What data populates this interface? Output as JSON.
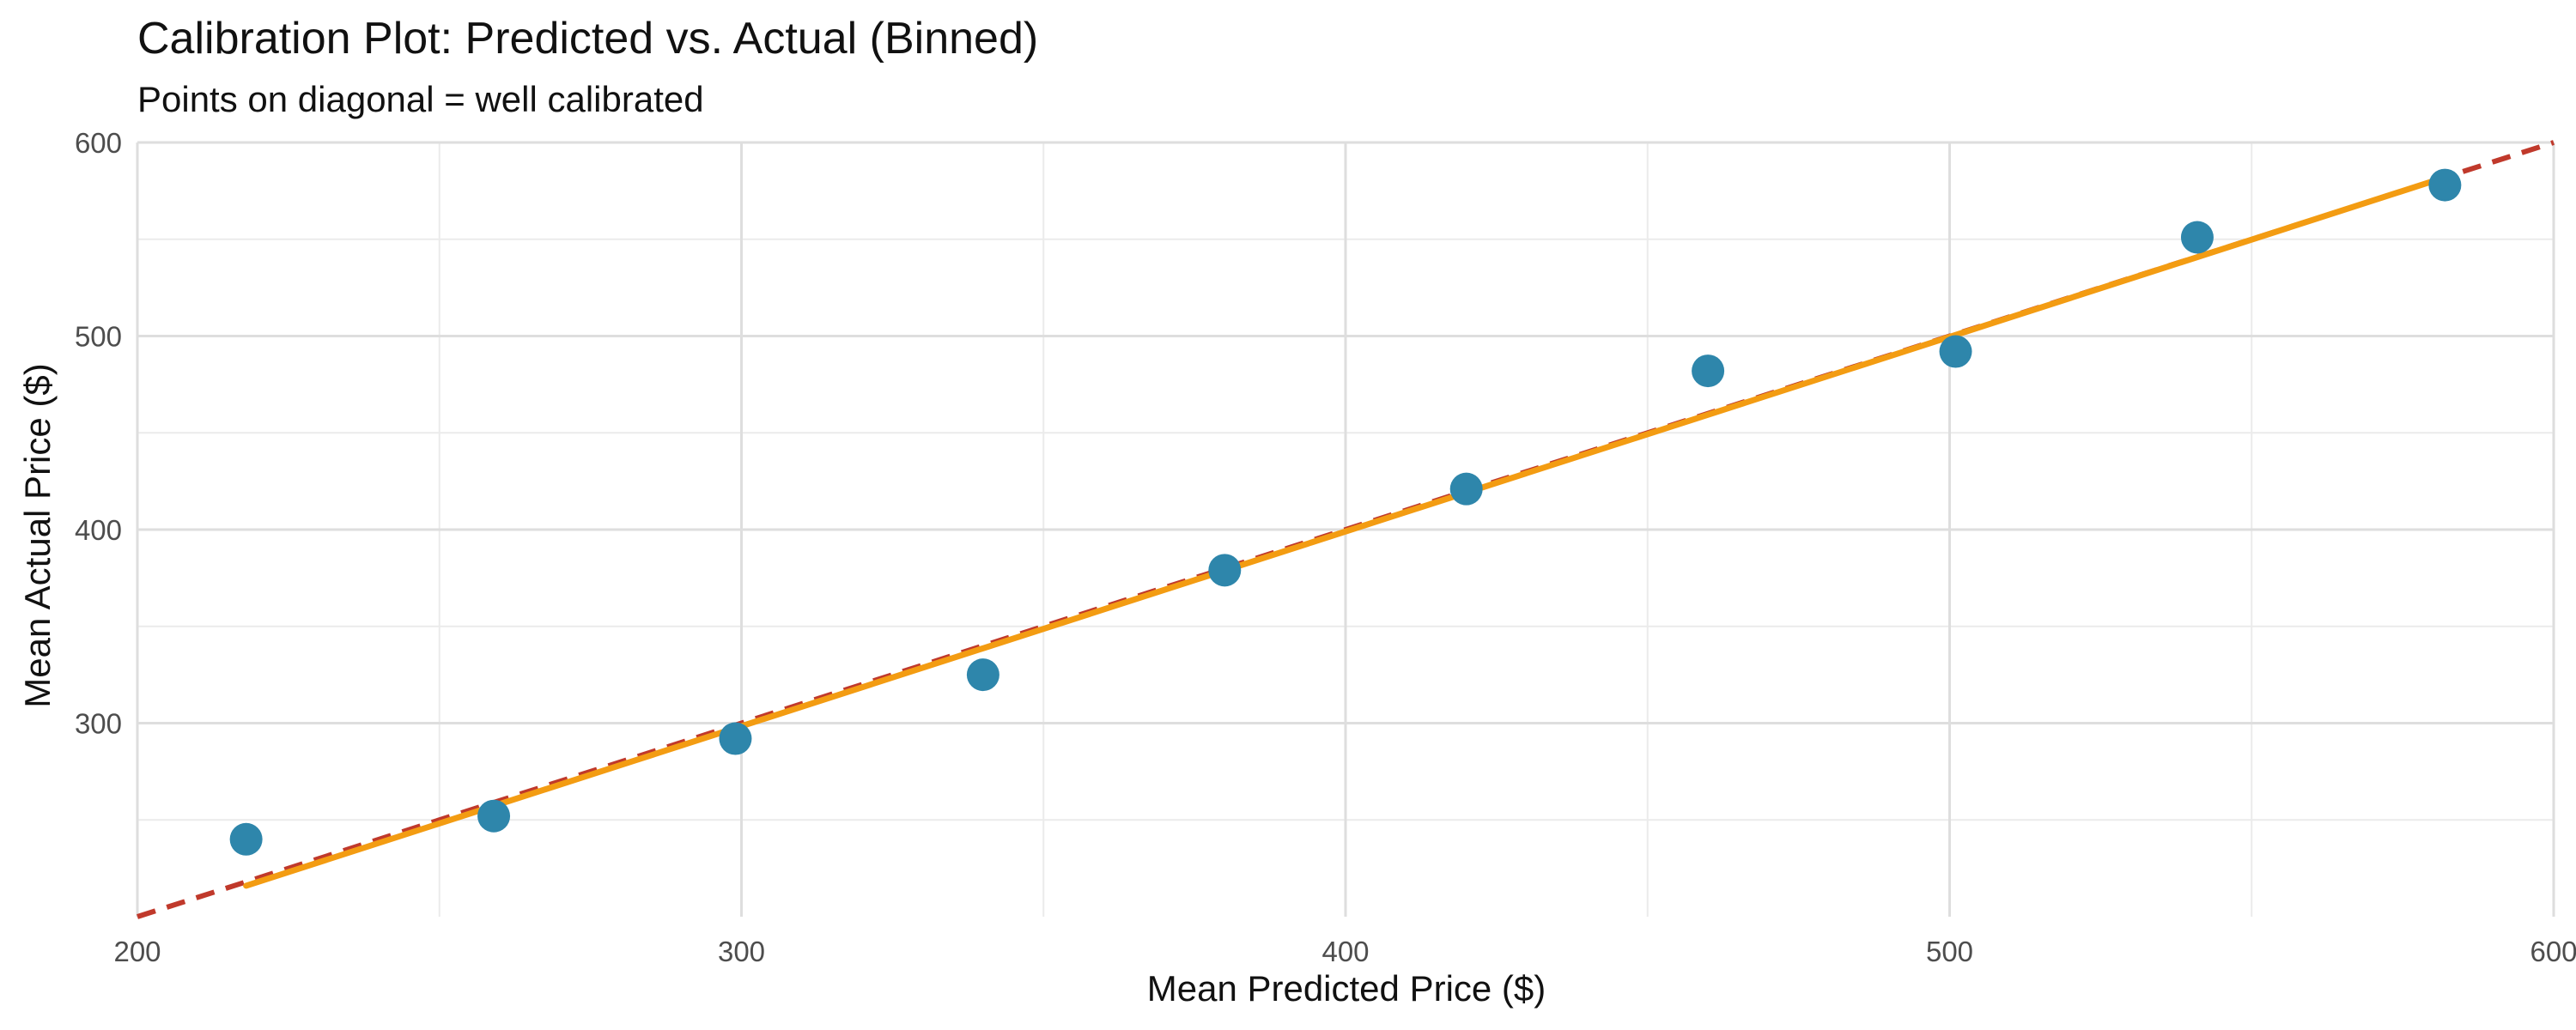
{
  "chart_data": {
    "type": "scatter",
    "title": "Calibration Plot: Predicted vs. Actual (Binned)",
    "subtitle": "Points on diagonal = well calibrated",
    "xlabel": "Mean Predicted Price ($)",
    "ylabel": "Mean Actual Price ($)",
    "xlim": [
      200,
      600
    ],
    "ylim": [
      200,
      600
    ],
    "x_ticks": [
      200,
      300,
      400,
      500,
      600
    ],
    "y_ticks": [
      300,
      400,
      500,
      600
    ],
    "x_minor_ticks": [
      250,
      350,
      450,
      550
    ],
    "y_minor_ticks": [
      250,
      350,
      450,
      550
    ],
    "grid": true,
    "legend": "none",
    "series": [
      {
        "type": "scatter",
        "color": "#2e86ab",
        "x": [
          218,
          259,
          299,
          340,
          380,
          420,
          460,
          501,
          541,
          582
        ],
        "y": [
          240,
          252,
          292,
          325,
          379,
          421,
          482,
          492,
          551,
          578
        ]
      }
    ],
    "reference_line": {
      "type": "line",
      "style": "dashed",
      "color": "#c0392b",
      "x": [
        200,
        600
      ],
      "y": [
        200,
        600
      ]
    },
    "fit_line": {
      "type": "line",
      "style": "solid",
      "color": "#f39c12",
      "x": [
        218,
        582
      ],
      "y": [
        216,
        582
      ]
    }
  }
}
